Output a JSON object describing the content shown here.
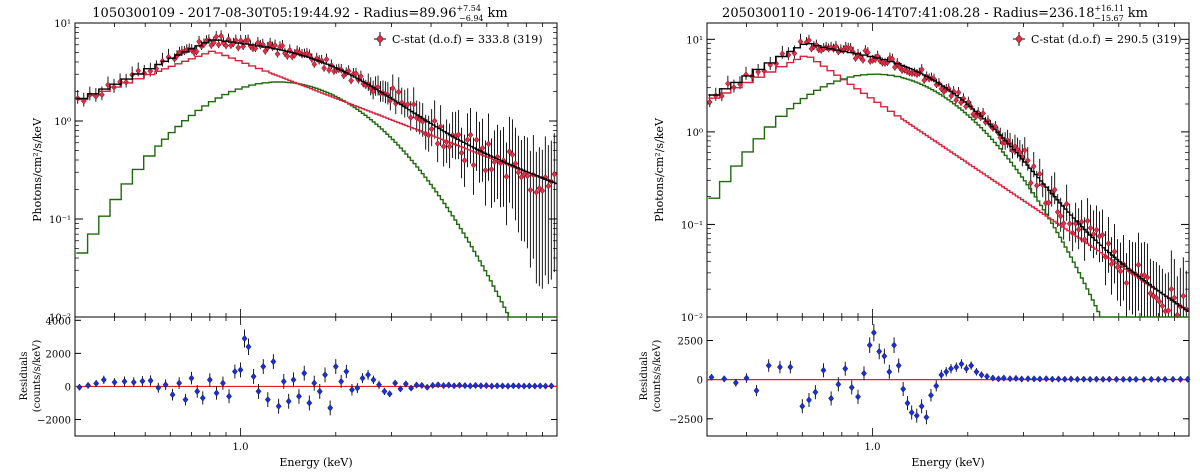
{
  "chart_data": [
    {
      "type": "line",
      "title": "1050300109 - 2017-08-30T05:19:44.92 - Radius=89.96",
      "title_sup": "+7.54",
      "title_sub": "−6.94",
      "title_unit": "km",
      "legend": "C-stat (d.o.f) = 333.8 (319)",
      "legend_position": "top-right",
      "ylabel": "Photons/cm²/s/keV",
      "ylabel_res": "Residuals",
      "ylabel_res2": "(counts/s/keV)",
      "xlabel": "Energy (keV)",
      "x_scale": "log",
      "xlim": [
        0.3,
        10.0
      ],
      "x_ticks": [
        {
          "value": 1.0,
          "label": "1.0"
        }
      ],
      "y_scale": "log",
      "ylim": [
        0.01,
        10
      ],
      "y_ticks": [
        {
          "value": 0.01,
          "label": "10⁻²"
        },
        {
          "value": 0.1,
          "label": "10⁻¹"
        },
        {
          "value": 1,
          "label": "10⁰"
        },
        {
          "value": 10,
          "label": "10¹"
        }
      ],
      "model": {
        "bb_norm": 2.5,
        "bb_peak": 1.32,
        "bb_width": 0.62,
        "pl_norm": 5.2,
        "pl_break": 0.82,
        "pl_lo_slope": 1.2,
        "pl_hi_slope": 1.25
      },
      "res_ylim": [
        -3000,
        4200
      ],
      "res_ticks": [
        {
          "value": -2000,
          "label": "−2000"
        },
        {
          "value": 0,
          "label": "0"
        },
        {
          "value": 2000,
          "label": "2000"
        },
        {
          "value": 4000,
          "label": "4000"
        }
      ],
      "residuals": [
        {
          "x": 0.31,
          "y": -50,
          "e": 200
        },
        {
          "x": 0.33,
          "y": 60,
          "e": 180
        },
        {
          "x": 0.35,
          "y": 180,
          "e": 200
        },
        {
          "x": 0.37,
          "y": 400,
          "e": 250
        },
        {
          "x": 0.4,
          "y": 250,
          "e": 250
        },
        {
          "x": 0.43,
          "y": 300,
          "e": 300
        },
        {
          "x": 0.46,
          "y": 250,
          "e": 300
        },
        {
          "x": 0.49,
          "y": 320,
          "e": 300
        },
        {
          "x": 0.52,
          "y": 350,
          "e": 320
        },
        {
          "x": 0.55,
          "y": -80,
          "e": 300
        },
        {
          "x": 0.58,
          "y": 100,
          "e": 320
        },
        {
          "x": 0.61,
          "y": -500,
          "e": 350
        },
        {
          "x": 0.64,
          "y": 200,
          "e": 350
        },
        {
          "x": 0.67,
          "y": -800,
          "e": 350
        },
        {
          "x": 0.7,
          "y": 500,
          "e": 380
        },
        {
          "x": 0.73,
          "y": -300,
          "e": 380
        },
        {
          "x": 0.76,
          "y": -700,
          "e": 400
        },
        {
          "x": 0.8,
          "y": 400,
          "e": 400
        },
        {
          "x": 0.84,
          "y": -400,
          "e": 400
        },
        {
          "x": 0.88,
          "y": 200,
          "e": 400
        },
        {
          "x": 0.92,
          "y": -600,
          "e": 420
        },
        {
          "x": 0.96,
          "y": 900,
          "e": 420
        },
        {
          "x": 1.0,
          "y": 1000,
          "e": 450
        },
        {
          "x": 1.03,
          "y": 2900,
          "e": 550
        },
        {
          "x": 1.06,
          "y": 2400,
          "e": 500
        },
        {
          "x": 1.1,
          "y": 600,
          "e": 450
        },
        {
          "x": 1.14,
          "y": -300,
          "e": 450
        },
        {
          "x": 1.18,
          "y": 1200,
          "e": 450
        },
        {
          "x": 1.22,
          "y": -800,
          "e": 450
        },
        {
          "x": 1.27,
          "y": 1500,
          "e": 450
        },
        {
          "x": 1.32,
          "y": -1200,
          "e": 450
        },
        {
          "x": 1.37,
          "y": 300,
          "e": 450
        },
        {
          "x": 1.42,
          "y": -900,
          "e": 450
        },
        {
          "x": 1.47,
          "y": 400,
          "e": 450
        },
        {
          "x": 1.53,
          "y": -600,
          "e": 450
        },
        {
          "x": 1.59,
          "y": 800,
          "e": 450
        },
        {
          "x": 1.65,
          "y": -1000,
          "e": 450
        },
        {
          "x": 1.71,
          "y": 200,
          "e": 450
        },
        {
          "x": 1.78,
          "y": -300,
          "e": 450
        },
        {
          "x": 1.85,
          "y": 700,
          "e": 450
        },
        {
          "x": 1.92,
          "y": -1300,
          "e": 450
        },
        {
          "x": 2.0,
          "y": 1200,
          "e": 450
        },
        {
          "x": 2.08,
          "y": 300,
          "e": 400
        },
        {
          "x": 2.16,
          "y": 900,
          "e": 400
        },
        {
          "x": 2.25,
          "y": -200,
          "e": 350
        },
        {
          "x": 2.34,
          "y": -100,
          "e": 300
        },
        {
          "x": 2.43,
          "y": 500,
          "e": 300
        },
        {
          "x": 2.53,
          "y": 700,
          "e": 300
        },
        {
          "x": 2.63,
          "y": 400,
          "e": 250
        },
        {
          "x": 2.74,
          "y": 100,
          "e": 250
        },
        {
          "x": 2.85,
          "y": -300,
          "e": 220
        },
        {
          "x": 2.96,
          "y": -450,
          "e": 200
        },
        {
          "x": 3.08,
          "y": 200,
          "e": 180
        },
        {
          "x": 3.2,
          "y": -150,
          "e": 160
        },
        {
          "x": 3.33,
          "y": 150,
          "e": 150
        },
        {
          "x": 3.46,
          "y": -100,
          "e": 140
        },
        {
          "x": 3.6,
          "y": 80,
          "e": 130
        },
        {
          "x": 3.74,
          "y": 60,
          "e": 120
        },
        {
          "x": 3.89,
          "y": -50,
          "e": 110
        },
        {
          "x": 4.05,
          "y": 60,
          "e": 100
        },
        {
          "x": 4.21,
          "y": 100,
          "e": 100
        },
        {
          "x": 4.38,
          "y": 50,
          "e": 90
        },
        {
          "x": 4.55,
          "y": 80,
          "e": 90
        },
        {
          "x": 4.73,
          "y": 40,
          "e": 80
        },
        {
          "x": 4.92,
          "y": 70,
          "e": 80
        },
        {
          "x": 5.12,
          "y": 50,
          "e": 80
        },
        {
          "x": 5.32,
          "y": 30,
          "e": 70
        },
        {
          "x": 5.53,
          "y": 60,
          "e": 70
        },
        {
          "x": 5.75,
          "y": 40,
          "e": 70
        },
        {
          "x": 5.98,
          "y": 50,
          "e": 70
        },
        {
          "x": 6.22,
          "y": 20,
          "e": 60
        },
        {
          "x": 6.47,
          "y": 40,
          "e": 60
        },
        {
          "x": 6.73,
          "y": 30,
          "e": 60
        },
        {
          "x": 7.0,
          "y": 20,
          "e": 60
        },
        {
          "x": 7.28,
          "y": 40,
          "e": 60
        },
        {
          "x": 7.57,
          "y": 30,
          "e": 60
        },
        {
          "x": 7.87,
          "y": 20,
          "e": 60
        },
        {
          "x": 8.18,
          "y": 30,
          "e": 60
        },
        {
          "x": 8.51,
          "y": 20,
          "e": 60
        },
        {
          "x": 8.85,
          "y": 30,
          "e": 60
        },
        {
          "x": 9.2,
          "y": 20,
          "e": 60
        },
        {
          "x": 9.6,
          "y": 30,
          "e": 60
        }
      ]
    },
    {
      "type": "line",
      "title": "2050300110 - 2019-06-14T07:41:08.28 - Radius=236.18",
      "title_sup": "+16.11",
      "title_sub": "−15.67",
      "title_unit": "km",
      "legend": "C-stat (d.o.f) = 290.5 (319)",
      "legend_position": "top-right",
      "ylabel": "Photons/cm²/s/keV",
      "ylabel_res": "Residuals",
      "ylabel_res2": "(counts/s/keV)",
      "xlabel": "Energy (keV)",
      "x_scale": "log",
      "xlim": [
        0.3,
        10.0
      ],
      "x_ticks": [
        {
          "value": 1.0,
          "label": "1.0"
        }
      ],
      "y_scale": "log",
      "ylim": [
        0.01,
        15
      ],
      "y_ticks": [
        {
          "value": 0.01,
          "label": "10⁻²"
        },
        {
          "value": 0.1,
          "label": "10⁻¹"
        },
        {
          "value": 1,
          "label": "10⁰"
        },
        {
          "value": 10,
          "label": "10¹"
        }
      ],
      "model": {
        "bb_norm": 4.2,
        "bb_peak": 1.02,
        "bb_width": 0.58,
        "pl_norm": 6.8,
        "pl_break": 0.62,
        "pl_lo_slope": 1.6,
        "pl_hi_slope": 2.3
      },
      "res_ylim": [
        -3600,
        4000
      ],
      "res_ticks": [
        {
          "value": -2500,
          "label": "−2500"
        },
        {
          "value": 0,
          "label": "0"
        },
        {
          "value": 2500,
          "label": "2500"
        }
      ],
      "residuals": [
        {
          "x": 0.31,
          "y": 150,
          "e": 200
        },
        {
          "x": 0.34,
          "y": 50,
          "e": 200
        },
        {
          "x": 0.37,
          "y": -200,
          "e": 250
        },
        {
          "x": 0.4,
          "y": 100,
          "e": 300
        },
        {
          "x": 0.43,
          "y": -700,
          "e": 350
        },
        {
          "x": 0.47,
          "y": 900,
          "e": 400
        },
        {
          "x": 0.51,
          "y": 800,
          "e": 400
        },
        {
          "x": 0.55,
          "y": 800,
          "e": 400
        },
        {
          "x": 0.6,
          "y": -1700,
          "e": 450
        },
        {
          "x": 0.63,
          "y": -1300,
          "e": 450
        },
        {
          "x": 0.66,
          "y": -800,
          "e": 450
        },
        {
          "x": 0.7,
          "y": 600,
          "e": 450
        },
        {
          "x": 0.74,
          "y": -1200,
          "e": 450
        },
        {
          "x": 0.78,
          "y": -300,
          "e": 450
        },
        {
          "x": 0.82,
          "y": 700,
          "e": 450
        },
        {
          "x": 0.86,
          "y": -500,
          "e": 450
        },
        {
          "x": 0.9,
          "y": -1100,
          "e": 450
        },
        {
          "x": 0.94,
          "y": 400,
          "e": 450
        },
        {
          "x": 0.98,
          "y": 2200,
          "e": 500
        },
        {
          "x": 1.01,
          "y": 3000,
          "e": 550
        },
        {
          "x": 1.05,
          "y": 1800,
          "e": 500
        },
        {
          "x": 1.09,
          "y": 1500,
          "e": 480
        },
        {
          "x": 1.13,
          "y": 500,
          "e": 450
        },
        {
          "x": 1.17,
          "y": 2200,
          "e": 500
        },
        {
          "x": 1.21,
          "y": 900,
          "e": 450
        },
        {
          "x": 1.25,
          "y": -600,
          "e": 450
        },
        {
          "x": 1.29,
          "y": -1500,
          "e": 450
        },
        {
          "x": 1.33,
          "y": -2100,
          "e": 450
        },
        {
          "x": 1.38,
          "y": -2300,
          "e": 450
        },
        {
          "x": 1.43,
          "y": -1700,
          "e": 450
        },
        {
          "x": 1.48,
          "y": -2400,
          "e": 450
        },
        {
          "x": 1.53,
          "y": -1000,
          "e": 400
        },
        {
          "x": 1.59,
          "y": -400,
          "e": 350
        },
        {
          "x": 1.65,
          "y": 300,
          "e": 330
        },
        {
          "x": 1.71,
          "y": 500,
          "e": 300
        },
        {
          "x": 1.77,
          "y": 700,
          "e": 300
        },
        {
          "x": 1.84,
          "y": 800,
          "e": 300
        },
        {
          "x": 1.91,
          "y": 1000,
          "e": 300
        },
        {
          "x": 1.98,
          "y": 700,
          "e": 280
        },
        {
          "x": 2.05,
          "y": 900,
          "e": 260
        },
        {
          "x": 2.13,
          "y": 500,
          "e": 240
        },
        {
          "x": 2.21,
          "y": 300,
          "e": 220
        },
        {
          "x": 2.3,
          "y": 200,
          "e": 200
        },
        {
          "x": 2.4,
          "y": 100,
          "e": 180
        },
        {
          "x": 2.5,
          "y": 50,
          "e": 160
        },
        {
          "x": 2.6,
          "y": 100,
          "e": 150
        },
        {
          "x": 2.72,
          "y": 60,
          "e": 140
        },
        {
          "x": 2.84,
          "y": 80,
          "e": 130
        },
        {
          "x": 2.96,
          "y": 40,
          "e": 120
        },
        {
          "x": 3.1,
          "y": 60,
          "e": 110
        },
        {
          "x": 3.24,
          "y": 50,
          "e": 100
        },
        {
          "x": 3.38,
          "y": 40,
          "e": 90
        },
        {
          "x": 3.54,
          "y": 60,
          "e": 80
        },
        {
          "x": 3.7,
          "y": 30,
          "e": 80
        },
        {
          "x": 3.87,
          "y": 40,
          "e": 70
        },
        {
          "x": 4.05,
          "y": 30,
          "e": 70
        },
        {
          "x": 4.24,
          "y": 40,
          "e": 60
        },
        {
          "x": 4.44,
          "y": 20,
          "e": 60
        },
        {
          "x": 4.65,
          "y": 30,
          "e": 60
        },
        {
          "x": 4.87,
          "y": 20,
          "e": 60
        },
        {
          "x": 5.1,
          "y": 30,
          "e": 60
        },
        {
          "x": 5.35,
          "y": 20,
          "e": 60
        },
        {
          "x": 5.6,
          "y": 30,
          "e": 60
        },
        {
          "x": 5.9,
          "y": 20,
          "e": 60
        },
        {
          "x": 6.2,
          "y": 20,
          "e": 60
        },
        {
          "x": 6.5,
          "y": 20,
          "e": 60
        },
        {
          "x": 6.8,
          "y": 20,
          "e": 60
        },
        {
          "x": 7.2,
          "y": 20,
          "e": 60
        },
        {
          "x": 7.6,
          "y": 20,
          "e": 60
        },
        {
          "x": 8.0,
          "y": 20,
          "e": 60
        },
        {
          "x": 8.4,
          "y": 20,
          "e": 60
        },
        {
          "x": 8.9,
          "y": 20,
          "e": 60
        },
        {
          "x": 9.4,
          "y": 20,
          "e": 60
        },
        {
          "x": 9.9,
          "y": 20,
          "e": 60
        }
      ]
    }
  ],
  "colors": {
    "total_model": "#000000",
    "blackbody": "#1d6a0d",
    "powerlaw": "#d8203a",
    "data_point": "#e0304a",
    "residual_point": "#1a2fd6",
    "zero_line": "#e02020",
    "error_bar": "#000000"
  }
}
